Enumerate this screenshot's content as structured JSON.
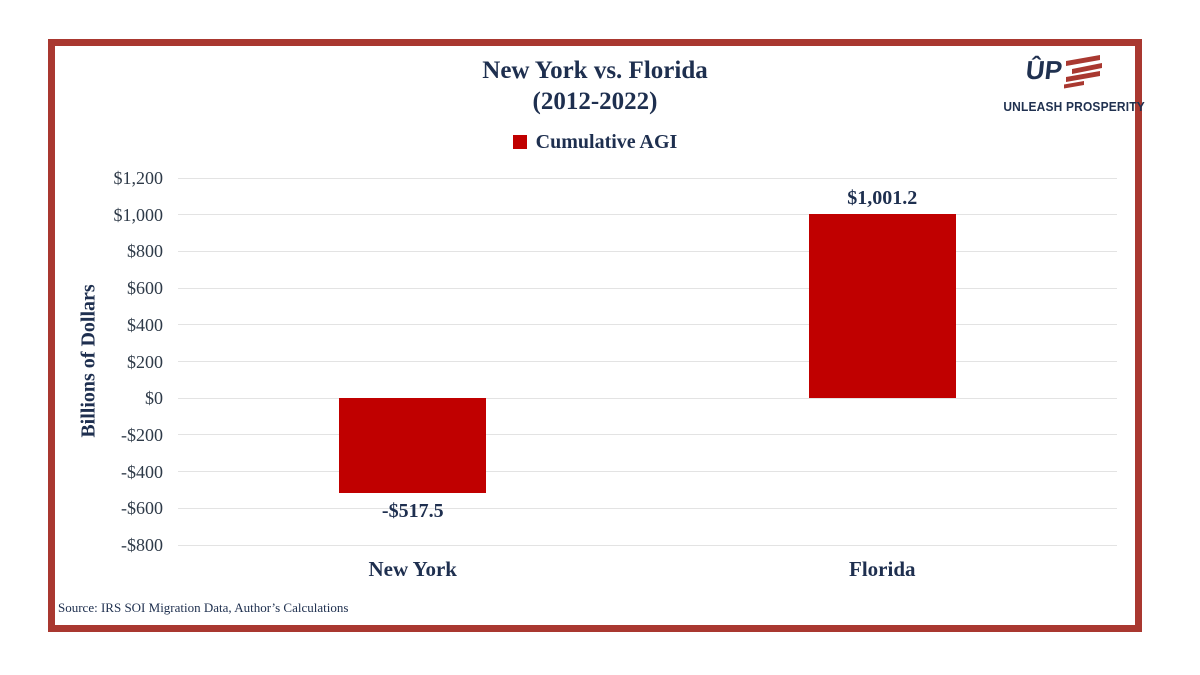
{
  "frame": {
    "border_color": "#a93830"
  },
  "header": {
    "title_line1": "New York vs. Florida",
    "title_line2": "(2012-2022)"
  },
  "legend": {
    "label": "Cumulative AGI",
    "swatch_color": "#c00000"
  },
  "logo": {
    "monogram": "ÛP",
    "wordmark": "UNLEASH PROSPERITY",
    "flag_icon": "waving-flag-stripes",
    "stripe_color": "#a93830",
    "text_color": "#203150"
  },
  "source": {
    "text": "Source: IRS SOI Migration Data, Author’s Calculations"
  },
  "chart_data": {
    "type": "bar",
    "title": "New York vs. Florida (2012-2022)",
    "series_name": "Cumulative AGI",
    "xlabel": "",
    "ylabel": "Billions of Dollars",
    "categories": [
      "New York",
      "Florida"
    ],
    "values": [
      -517.5,
      1001.2
    ],
    "value_labels": [
      "-$517.5",
      "$1,001.2"
    ],
    "ylim": [
      -800,
      1200
    ],
    "yticks": [
      1200,
      1000,
      800,
      600,
      400,
      200,
      0,
      -200,
      -400,
      -600,
      -800
    ],
    "ytick_labels": [
      "$1,200",
      "$1,000",
      "$800",
      "$600",
      "$400",
      "$200",
      "$0",
      "-$200",
      "-$400",
      "-$600",
      "-$800"
    ],
    "bar_color": "#c00000",
    "grid": true,
    "legend_position": "top"
  }
}
